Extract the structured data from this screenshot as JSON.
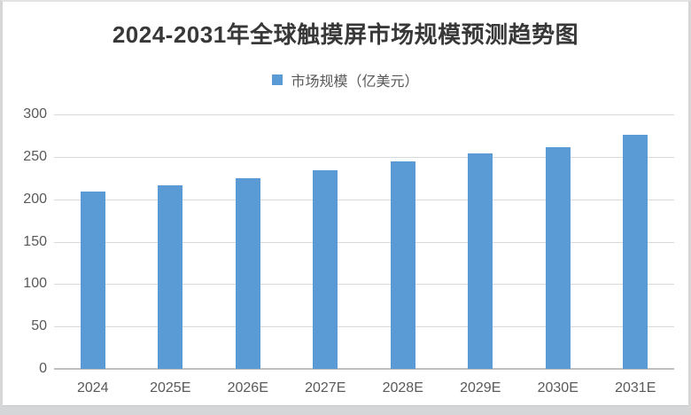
{
  "chart_data": {
    "type": "bar",
    "title": "2024-2031年全球触摸屏市场规模预测趋势图",
    "legend": [
      {
        "label": "市场规模（亿美元）",
        "color": "#5B9BD5",
        "marker": "square-icon"
      }
    ],
    "legend_position": "top",
    "categories": [
      "2024",
      "2025E",
      "2026E",
      "2027E",
      "2028E",
      "2029E",
      "2030E",
      "2031E"
    ],
    "values": [
      209,
      216,
      225,
      234,
      245,
      254,
      261,
      276
    ],
    "xlabel": "",
    "ylabel": "",
    "ylim": [
      0,
      300
    ],
    "yticks": [
      0,
      50,
      100,
      150,
      200,
      250,
      300
    ],
    "grid": true,
    "colors": {
      "bar": "#5B9BD5",
      "gridline": "#d9d9d9",
      "axis_baseline": "#c0c0c0",
      "tick_text": "#595959",
      "title_text": "#383838"
    }
  }
}
